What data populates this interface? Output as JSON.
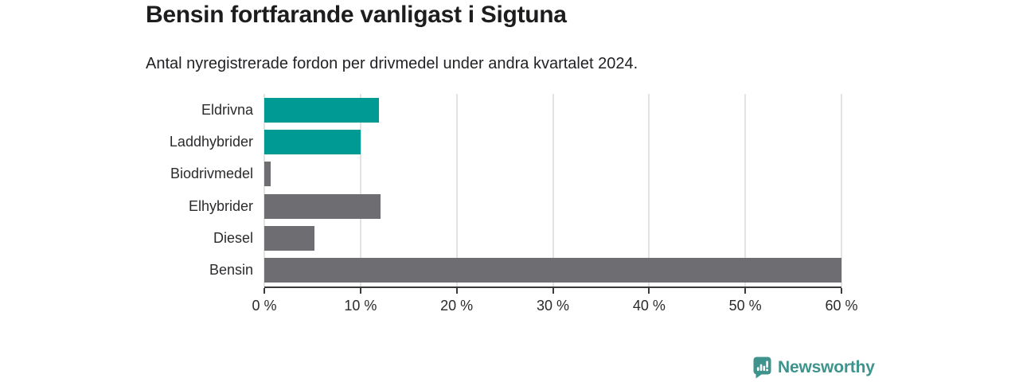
{
  "chart": {
    "title": "Bensin fortfarande vanligast i Sigtuna",
    "subtitle": "Antal nyregistrerade fordon per drivmedel under andra kvartalet 2024."
  },
  "chart_data": {
    "type": "bar",
    "orientation": "horizontal",
    "title": "Bensin fortfarande vanligast i Sigtuna",
    "subtitle": "Antal nyregistrerade fordon per drivmedel under andra kvartalet 2024.",
    "xlabel": "",
    "ylabel": "",
    "categories": [
      "Eldrivna",
      "Laddhybrider",
      "Biodrivmedel",
      "Elhybrider",
      "Diesel",
      "Bensin"
    ],
    "values": [
      11.9,
      10.0,
      0.7,
      12.1,
      5.2,
      60.0
    ],
    "unit": "%",
    "bar_color_keys": [
      "teal",
      "teal",
      "gray",
      "gray",
      "gray",
      "gray"
    ],
    "xlim": [
      0,
      60
    ],
    "x_ticks": [
      0,
      10,
      20,
      30,
      40,
      50,
      60
    ],
    "x_tick_labels": [
      "0 %",
      "10 %",
      "20 %",
      "30 %",
      "40 %",
      "50 %",
      "60 %"
    ],
    "grid": "vertical-gridlines-on",
    "legend": "none"
  },
  "colors": {
    "teal": "#009a94",
    "gray": "#6e6d72",
    "gridline": "#e3e3e4",
    "axis": "#3a3a3c",
    "title_text": "#1d1d1f",
    "label_text": "#2b2b2e",
    "brand": "#3e938d"
  },
  "footer": {
    "brand": "Newsworthy",
    "logo_icon": "speech-bubble-bar-chart-icon"
  }
}
